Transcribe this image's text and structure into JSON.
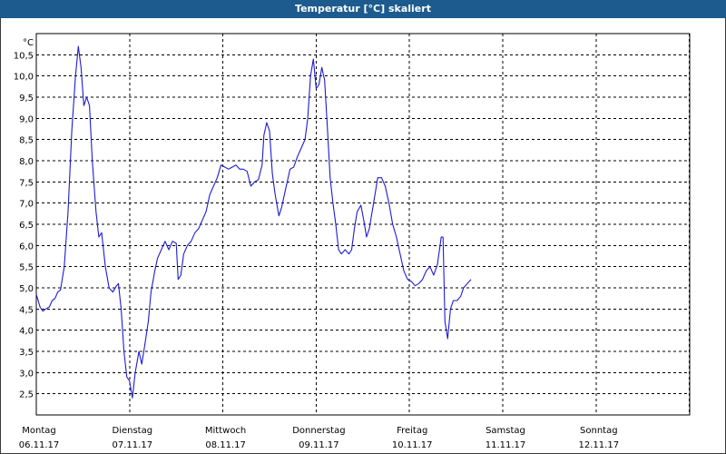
{
  "window": {
    "title": "Temperatur [°C] skaliert"
  },
  "colors": {
    "title_bar": "#1d5b8e",
    "title_text": "#ffffff",
    "series": "#1c1ccf",
    "grid": "#000000",
    "axis": "#000000"
  },
  "chart_data": {
    "type": "line",
    "ylabel": "°C",
    "ylim": [
      2.0,
      11.0
    ],
    "y_ticks": [
      "10,5",
      "10,0",
      "9,5",
      "9,0",
      "8,5",
      "8,0",
      "7,5",
      "7,0",
      "6,5",
      "6,0",
      "5,5",
      "5,0",
      "4,5",
      "4,0",
      "3,5",
      "3,0",
      "2,5"
    ],
    "x_ticks": [
      {
        "day": "Montag",
        "date": "06.11.17"
      },
      {
        "day": "Dienstag",
        "date": "07.11.17"
      },
      {
        "day": "Mittwoch",
        "date": "08.11.17"
      },
      {
        "day": "Donnerstag",
        "date": "09.11.17"
      },
      {
        "day": "Freitag",
        "date": "10.11.17"
      },
      {
        "day": "Samstag",
        "date": "11.11.17"
      },
      {
        "day": "Sonntag",
        "date": "12.11.17"
      }
    ],
    "grid": true,
    "series": [
      {
        "values": [
          [
            0.0,
            4.85
          ],
          [
            0.04,
            4.55
          ],
          [
            0.07,
            4.45
          ],
          [
            0.1,
            4.5
          ],
          [
            0.14,
            4.55
          ],
          [
            0.17,
            4.7
          ],
          [
            0.2,
            4.75
          ],
          [
            0.23,
            4.9
          ],
          [
            0.26,
            4.95
          ],
          [
            0.3,
            5.5
          ],
          [
            0.34,
            6.8
          ],
          [
            0.38,
            8.7
          ],
          [
            0.42,
            10.0
          ],
          [
            0.45,
            10.7
          ],
          [
            0.48,
            10.2
          ],
          [
            0.51,
            9.3
          ],
          [
            0.54,
            9.5
          ],
          [
            0.57,
            9.3
          ],
          [
            0.6,
            8.0
          ],
          [
            0.64,
            6.8
          ],
          [
            0.67,
            6.2
          ],
          [
            0.7,
            6.3
          ],
          [
            0.74,
            5.5
          ],
          [
            0.78,
            5.0
          ],
          [
            0.82,
            4.9
          ],
          [
            0.86,
            5.05
          ],
          [
            0.88,
            5.1
          ],
          [
            0.91,
            4.5
          ],
          [
            0.94,
            3.5
          ],
          [
            0.97,
            2.9
          ],
          [
            1.0,
            2.8
          ],
          [
            1.03,
            2.4
          ],
          [
            1.06,
            3.0
          ],
          [
            1.1,
            3.5
          ],
          [
            1.13,
            3.2
          ],
          [
            1.16,
            3.6
          ],
          [
            1.2,
            4.2
          ],
          [
            1.23,
            4.9
          ],
          [
            1.27,
            5.4
          ],
          [
            1.3,
            5.7
          ],
          [
            1.34,
            5.9
          ],
          [
            1.38,
            6.1
          ],
          [
            1.42,
            5.9
          ],
          [
            1.46,
            6.1
          ],
          [
            1.5,
            6.05
          ],
          [
            1.52,
            5.2
          ],
          [
            1.55,
            5.3
          ],
          [
            1.58,
            5.8
          ],
          [
            1.62,
            6.0
          ],
          [
            1.66,
            6.1
          ],
          [
            1.7,
            6.3
          ],
          [
            1.74,
            6.4
          ],
          [
            1.78,
            6.6
          ],
          [
            1.82,
            6.8
          ],
          [
            1.86,
            7.2
          ],
          [
            1.9,
            7.4
          ],
          [
            1.94,
            7.6
          ],
          [
            1.98,
            7.9
          ],
          [
            2.02,
            7.85
          ],
          [
            2.06,
            7.8
          ],
          [
            2.1,
            7.85
          ],
          [
            2.14,
            7.9
          ],
          [
            2.18,
            7.8
          ],
          [
            2.22,
            7.8
          ],
          [
            2.26,
            7.75
          ],
          [
            2.3,
            7.4
          ],
          [
            2.34,
            7.5
          ],
          [
            2.38,
            7.55
          ],
          [
            2.42,
            7.9
          ],
          [
            2.44,
            8.6
          ],
          [
            2.47,
            8.9
          ],
          [
            2.5,
            8.7
          ],
          [
            2.53,
            7.7
          ],
          [
            2.56,
            7.2
          ],
          [
            2.6,
            6.7
          ],
          [
            2.63,
            6.9
          ],
          [
            2.66,
            7.2
          ],
          [
            2.69,
            7.5
          ],
          [
            2.72,
            7.8
          ],
          [
            2.76,
            7.85
          ],
          [
            2.8,
            8.1
          ],
          [
            2.84,
            8.3
          ],
          [
            2.88,
            8.5
          ],
          [
            2.91,
            9.0
          ],
          [
            2.94,
            10.0
          ],
          [
            2.97,
            10.4
          ],
          [
            3.0,
            9.7
          ],
          [
            3.03,
            9.8
          ],
          [
            3.06,
            10.2
          ],
          [
            3.09,
            9.9
          ],
          [
            3.12,
            8.8
          ],
          [
            3.15,
            7.6
          ],
          [
            3.18,
            7.0
          ],
          [
            3.21,
            6.5
          ],
          [
            3.24,
            5.9
          ],
          [
            3.27,
            5.8
          ],
          [
            3.31,
            5.9
          ],
          [
            3.35,
            5.8
          ],
          [
            3.38,
            5.9
          ],
          [
            3.41,
            6.4
          ],
          [
            3.44,
            6.8
          ],
          [
            3.48,
            6.95
          ],
          [
            3.51,
            6.6
          ],
          [
            3.54,
            6.2
          ],
          [
            3.57,
            6.4
          ],
          [
            3.6,
            6.8
          ],
          [
            3.63,
            7.2
          ],
          [
            3.66,
            7.6
          ],
          [
            3.7,
            7.6
          ],
          [
            3.74,
            7.4
          ],
          [
            3.78,
            7.0
          ],
          [
            3.82,
            6.5
          ],
          [
            3.86,
            6.2
          ],
          [
            3.9,
            5.8
          ],
          [
            3.94,
            5.4
          ],
          [
            3.98,
            5.2
          ],
          [
            4.02,
            5.15
          ],
          [
            4.06,
            5.05
          ],
          [
            4.1,
            5.1
          ],
          [
            4.14,
            5.2
          ],
          [
            4.18,
            5.4
          ],
          [
            4.22,
            5.5
          ],
          [
            4.26,
            5.3
          ],
          [
            4.3,
            5.55
          ],
          [
            4.34,
            6.2
          ],
          [
            4.36,
            6.2
          ],
          [
            4.38,
            4.2
          ],
          [
            4.41,
            3.8
          ],
          [
            4.44,
            4.5
          ],
          [
            4.47,
            4.7
          ],
          [
            4.51,
            4.7
          ],
          [
            4.55,
            4.8
          ],
          [
            4.58,
            5.0
          ],
          [
            4.62,
            5.1
          ],
          [
            4.66,
            5.2
          ]
        ]
      }
    ]
  }
}
